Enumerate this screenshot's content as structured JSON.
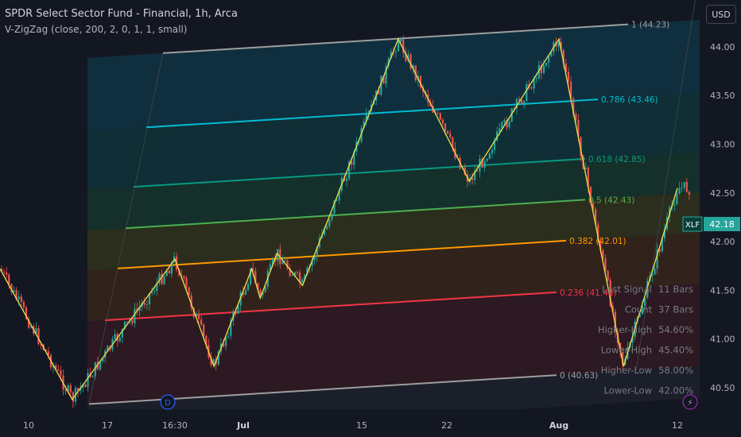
{
  "header": {
    "title": "SPDR Select Sector Fund - Financial, 1h, Arca",
    "indicator": "V-ZigZag (close, 200, 2, 0, 1, 1, small)",
    "currency": "USD"
  },
  "colors": {
    "background": "#131722",
    "candle_up": "#26a69a",
    "candle_down": "#ef5350",
    "zigzag": "#f0e14a",
    "fib_0": "#9e9e9e",
    "fib_236": "#f23645",
    "fib_382": "#ff9800",
    "fib_5": "#4caf50",
    "fib_618": "#089981",
    "fib_786": "#00bcd4",
    "fib_1": "#9e9e9e"
  },
  "chart_data": {
    "type": "candlestick",
    "symbol_label": "XLF",
    "last_price": "42.18",
    "ylim": [
      40.28,
      44.48
    ],
    "y_ticks": [
      "44.00",
      "43.50",
      "43.00",
      "42.50",
      "42.00",
      "41.50",
      "41.00",
      "40.50"
    ],
    "x_ticks": [
      "10",
      "17",
      "16:30",
      "Jul",
      "15",
      "22",
      "Aug",
      "12"
    ],
    "x_markers": [
      "D",
      "⚡"
    ],
    "fib_levels": [
      {
        "ratio": "1",
        "value": "44.23",
        "label": "1 (44.23)"
      },
      {
        "ratio": "0.786",
        "value": "43.46",
        "label": "0.786 (43.46)"
      },
      {
        "ratio": "0.618",
        "value": "42.85",
        "label": "0.618 (42.85)"
      },
      {
        "ratio": "0.5",
        "value": "42.43",
        "label": "0.5 (42.43)"
      },
      {
        "ratio": "0.382",
        "value": "42.01",
        "label": "0.382 (42.01)"
      },
      {
        "ratio": "0.236",
        "value": "41.48",
        "label": "0.236 (41.48)"
      },
      {
        "ratio": "0",
        "value": "40.63",
        "label": "0 (40.63)"
      }
    ],
    "stats": [
      {
        "label": "Last Signal",
        "value": "11 Bars"
      },
      {
        "label": "Count",
        "value": "37 Bars"
      },
      {
        "label": "Higher-High",
        "value": "54.60%"
      },
      {
        "label": "Lower-High",
        "value": "45.40%"
      },
      {
        "label": "Higher-Low",
        "value": "58.00%"
      },
      {
        "label": "Lower-Low",
        "value": "42.00%"
      }
    ],
    "zigzag": [
      {
        "x": "May 31",
        "y": 41.72
      },
      {
        "x": "Jun 14",
        "y": 40.38
      },
      {
        "x": "Jun 24",
        "y": 41.82
      },
      {
        "x": "Jun 28",
        "y": 40.72
      },
      {
        "x": "Jul 2",
        "y": 41.72
      },
      {
        "x": "Jul 3",
        "y": 41.42
      },
      {
        "x": "Jul 5",
        "y": 41.88
      },
      {
        "x": "Jul 8",
        "y": 41.55
      },
      {
        "x": "Jul 18",
        "y": 44.08
      },
      {
        "x": "Jul 24",
        "y": 42.62
      },
      {
        "x": "Aug 1",
        "y": 44.08
      },
      {
        "x": "Aug 7",
        "y": 40.72
      },
      {
        "x": "Aug 12",
        "y": 42.55
      }
    ]
  }
}
